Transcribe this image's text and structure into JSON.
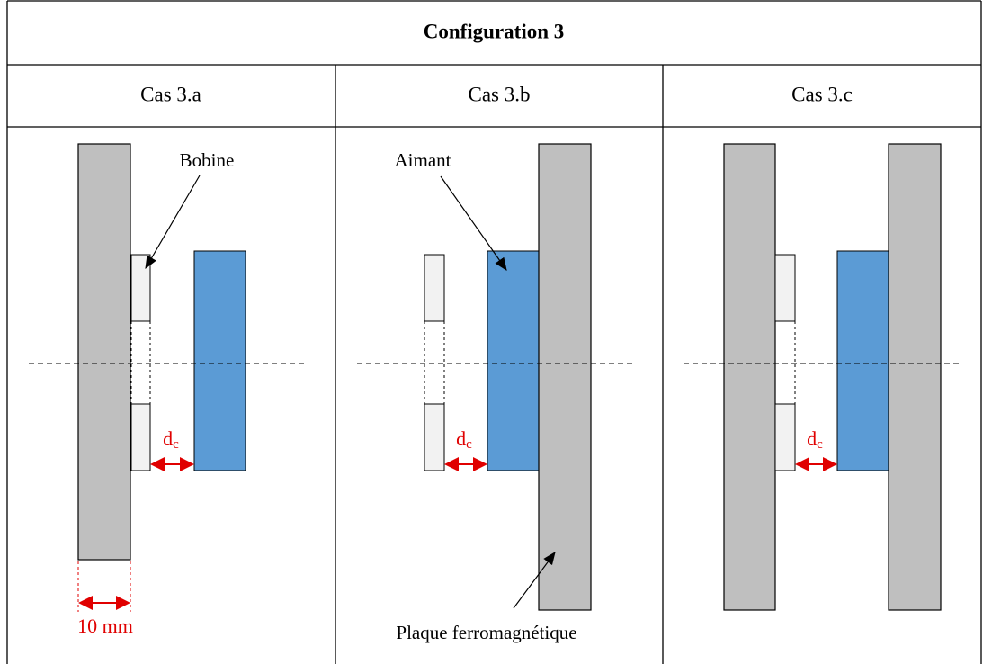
{
  "title": "Configuration 3",
  "cases": [
    "Cas 3.a",
    "Cas 3.b",
    "Cas 3.c"
  ],
  "annotations": {
    "coil": "Bobine",
    "magnet": "Aimant",
    "plate": "Plaque ferromagnétique",
    "width": "10 mm"
  },
  "gap_label": {
    "symbol": "d",
    "subscript": "c"
  }
}
